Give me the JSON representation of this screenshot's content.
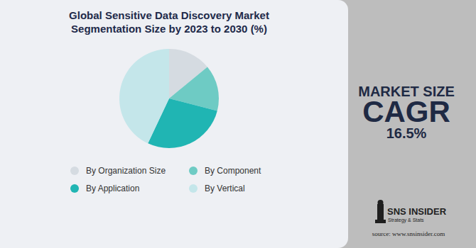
{
  "chart_data": {
    "type": "pie",
    "title": "Global Sensitive Data Discovery Market Segmentation Size by 2023 to 2030 (%)",
    "categories": [
      "By Organization Size",
      "By Component",
      "By Application",
      "By Vertical"
    ],
    "values": [
      14,
      15,
      28,
      43
    ],
    "colors": [
      "#d5dbe1",
      "#6ecbc4",
      "#20b5b3",
      "#c4e6ea"
    ],
    "legend": "bottom",
    "annotations": [
      {
        "text": "MARKET SIZE"
      },
      {
        "text": "CAGR"
      },
      {
        "value": 16.5,
        "label": "16.5%"
      }
    ],
    "logo": [
      "SNS INSIDER",
      "Strategy & Stats"
    ],
    "source": "source: www.snsinsider.com"
  }
}
